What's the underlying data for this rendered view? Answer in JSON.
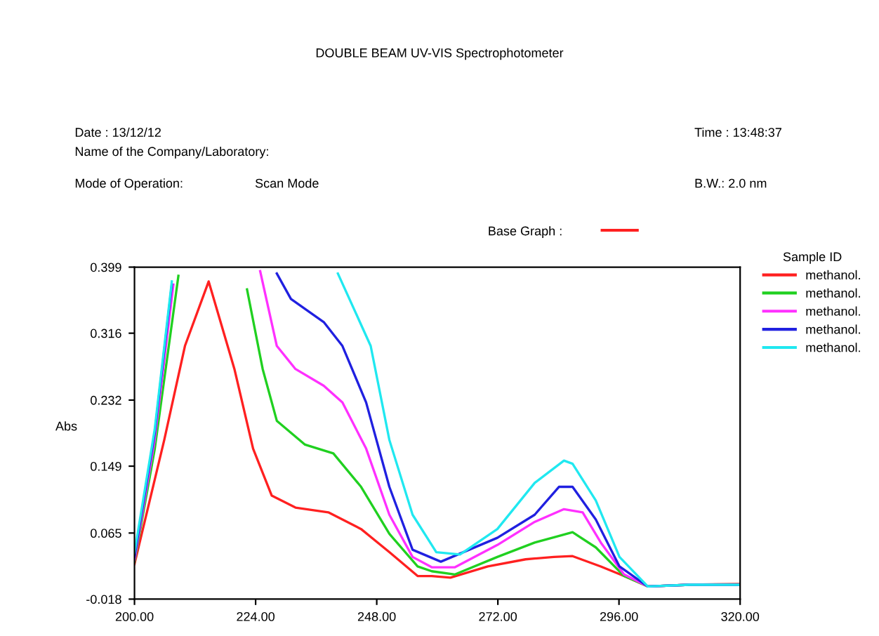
{
  "chart_data": {
    "type": "line",
    "title": "DOUBLE BEAM UV-VIS Spectrophotometer",
    "ylabel": "Abs",
    "legend_title": "Sample ID",
    "annotations": [
      "Date : 13/12/12",
      "Name of the Company/Laboratory:",
      "Mode of Operation:",
      "Scan Mode",
      "Time : 13:48:37",
      "B.W.: 2.0 nm",
      "Base Graph :"
    ],
    "xlim": [
      200,
      320
    ],
    "xticks": [
      {
        "value": 200,
        "label": "200.00"
      },
      {
        "value": 224,
        "label": "224.00"
      },
      {
        "value": 248,
        "label": "248.00"
      },
      {
        "value": 272,
        "label": "272.00"
      },
      {
        "value": 296,
        "label": "296.00"
      },
      {
        "value": 320,
        "label": "320.00"
      }
    ],
    "ylim": [
      -0.018,
      0.399
    ],
    "yticks": [
      {
        "value": -0.018,
        "label": "-0.018"
      },
      {
        "value": 0.065,
        "label": "0.065"
      },
      {
        "value": 0.149,
        "label": "0.149"
      },
      {
        "value": 0.232,
        "label": "0.232"
      },
      {
        "value": 0.316,
        "label": "0.316"
      },
      {
        "value": 0.399,
        "label": "0.399"
      }
    ],
    "grid": false,
    "legend": "right",
    "marker": "none",
    "line_style": "solid",
    "series": [
      {
        "name": "methanol.",
        "color": "#ff2020",
        "x": [
          200,
          205.9,
          210,
          214.7,
          219.8,
          223.5,
          227.2,
          231.9,
          238.4,
          244.9,
          250.5,
          256.1,
          258.9,
          262.6,
          270,
          277.5,
          283.1,
          286.8,
          292.4,
          297,
          301.7,
          310,
          320
        ],
        "values": [
          0.026,
          0.182,
          0.3,
          0.381,
          0.271,
          0.171,
          0.112,
          0.097,
          0.091,
          0.07,
          0.041,
          0.011,
          0.011,
          0.009,
          0.023,
          0.032,
          0.035,
          0.036,
          0.023,
          0.011,
          -0.002,
          0.0,
          0.001
        ]
      },
      {
        "name": "methanol.",
        "color": "#20d020",
        "x": [
          200,
          204,
          208.7,
          215,
          222.3,
          225.4,
          228.2,
          233.8,
          239.4,
          244.9,
          250.5,
          256.1,
          258.9,
          263.5,
          271.9,
          279.3,
          286.8,
          291.4,
          297,
          301.7,
          310,
          320
        ],
        "values": [
          0.029,
          0.17,
          0.388,
          null,
          0.371,
          0.271,
          0.206,
          0.176,
          0.165,
          0.123,
          0.064,
          0.023,
          0.017,
          0.013,
          0.035,
          0.053,
          0.066,
          0.047,
          0.011,
          -0.002,
          0.0,
          0.0
        ]
      },
      {
        "name": "methanol.",
        "color": "#ff30ff",
        "x": [
          200,
          204,
          207.7,
          215,
          224.9,
          228.2,
          231.9,
          237.5,
          241.2,
          245.9,
          250.5,
          255.1,
          258.9,
          263.5,
          271.9,
          279.3,
          285.1,
          288.8,
          292.4,
          297,
          301.7,
          310,
          320
        ],
        "values": [
          0.031,
          0.182,
          0.377,
          null,
          0.394,
          0.3,
          0.271,
          0.25,
          0.229,
          0.171,
          0.088,
          0.035,
          0.022,
          0.022,
          0.05,
          0.079,
          0.095,
          0.091,
          0.053,
          0.013,
          -0.002,
          0.0,
          0.0
        ]
      },
      {
        "name": "methanol.",
        "color": "#2020e0",
        "x": [
          200,
          204,
          207.4,
          215,
          228.2,
          231,
          237.5,
          241.2,
          245.9,
          250.5,
          255.1,
          260.7,
          271.9,
          279.3,
          284.1,
          286.8,
          291.4,
          296.1,
          301.7,
          310,
          320
        ],
        "values": [
          0.035,
          0.19,
          0.377,
          null,
          0.391,
          0.359,
          0.33,
          0.3,
          0.229,
          0.123,
          0.044,
          0.029,
          0.059,
          0.088,
          0.123,
          0.123,
          0.082,
          0.023,
          -0.002,
          0.0,
          0.0
        ]
      },
      {
        "name": "methanol.",
        "color": "#20e8f0",
        "x": [
          200,
          204,
          207.4,
          220,
          240.3,
          246.8,
          250.5,
          255.1,
          259.8,
          264.5,
          271.9,
          279.3,
          285.1,
          286.8,
          291.4,
          296.1,
          301.7,
          310,
          320
        ],
        "values": [
          0.04,
          0.195,
          0.381,
          null,
          0.391,
          0.3,
          0.182,
          0.088,
          0.041,
          0.038,
          0.07,
          0.128,
          0.156,
          0.152,
          0.106,
          0.035,
          -0.002,
          0.0,
          0.0
        ]
      }
    ]
  }
}
